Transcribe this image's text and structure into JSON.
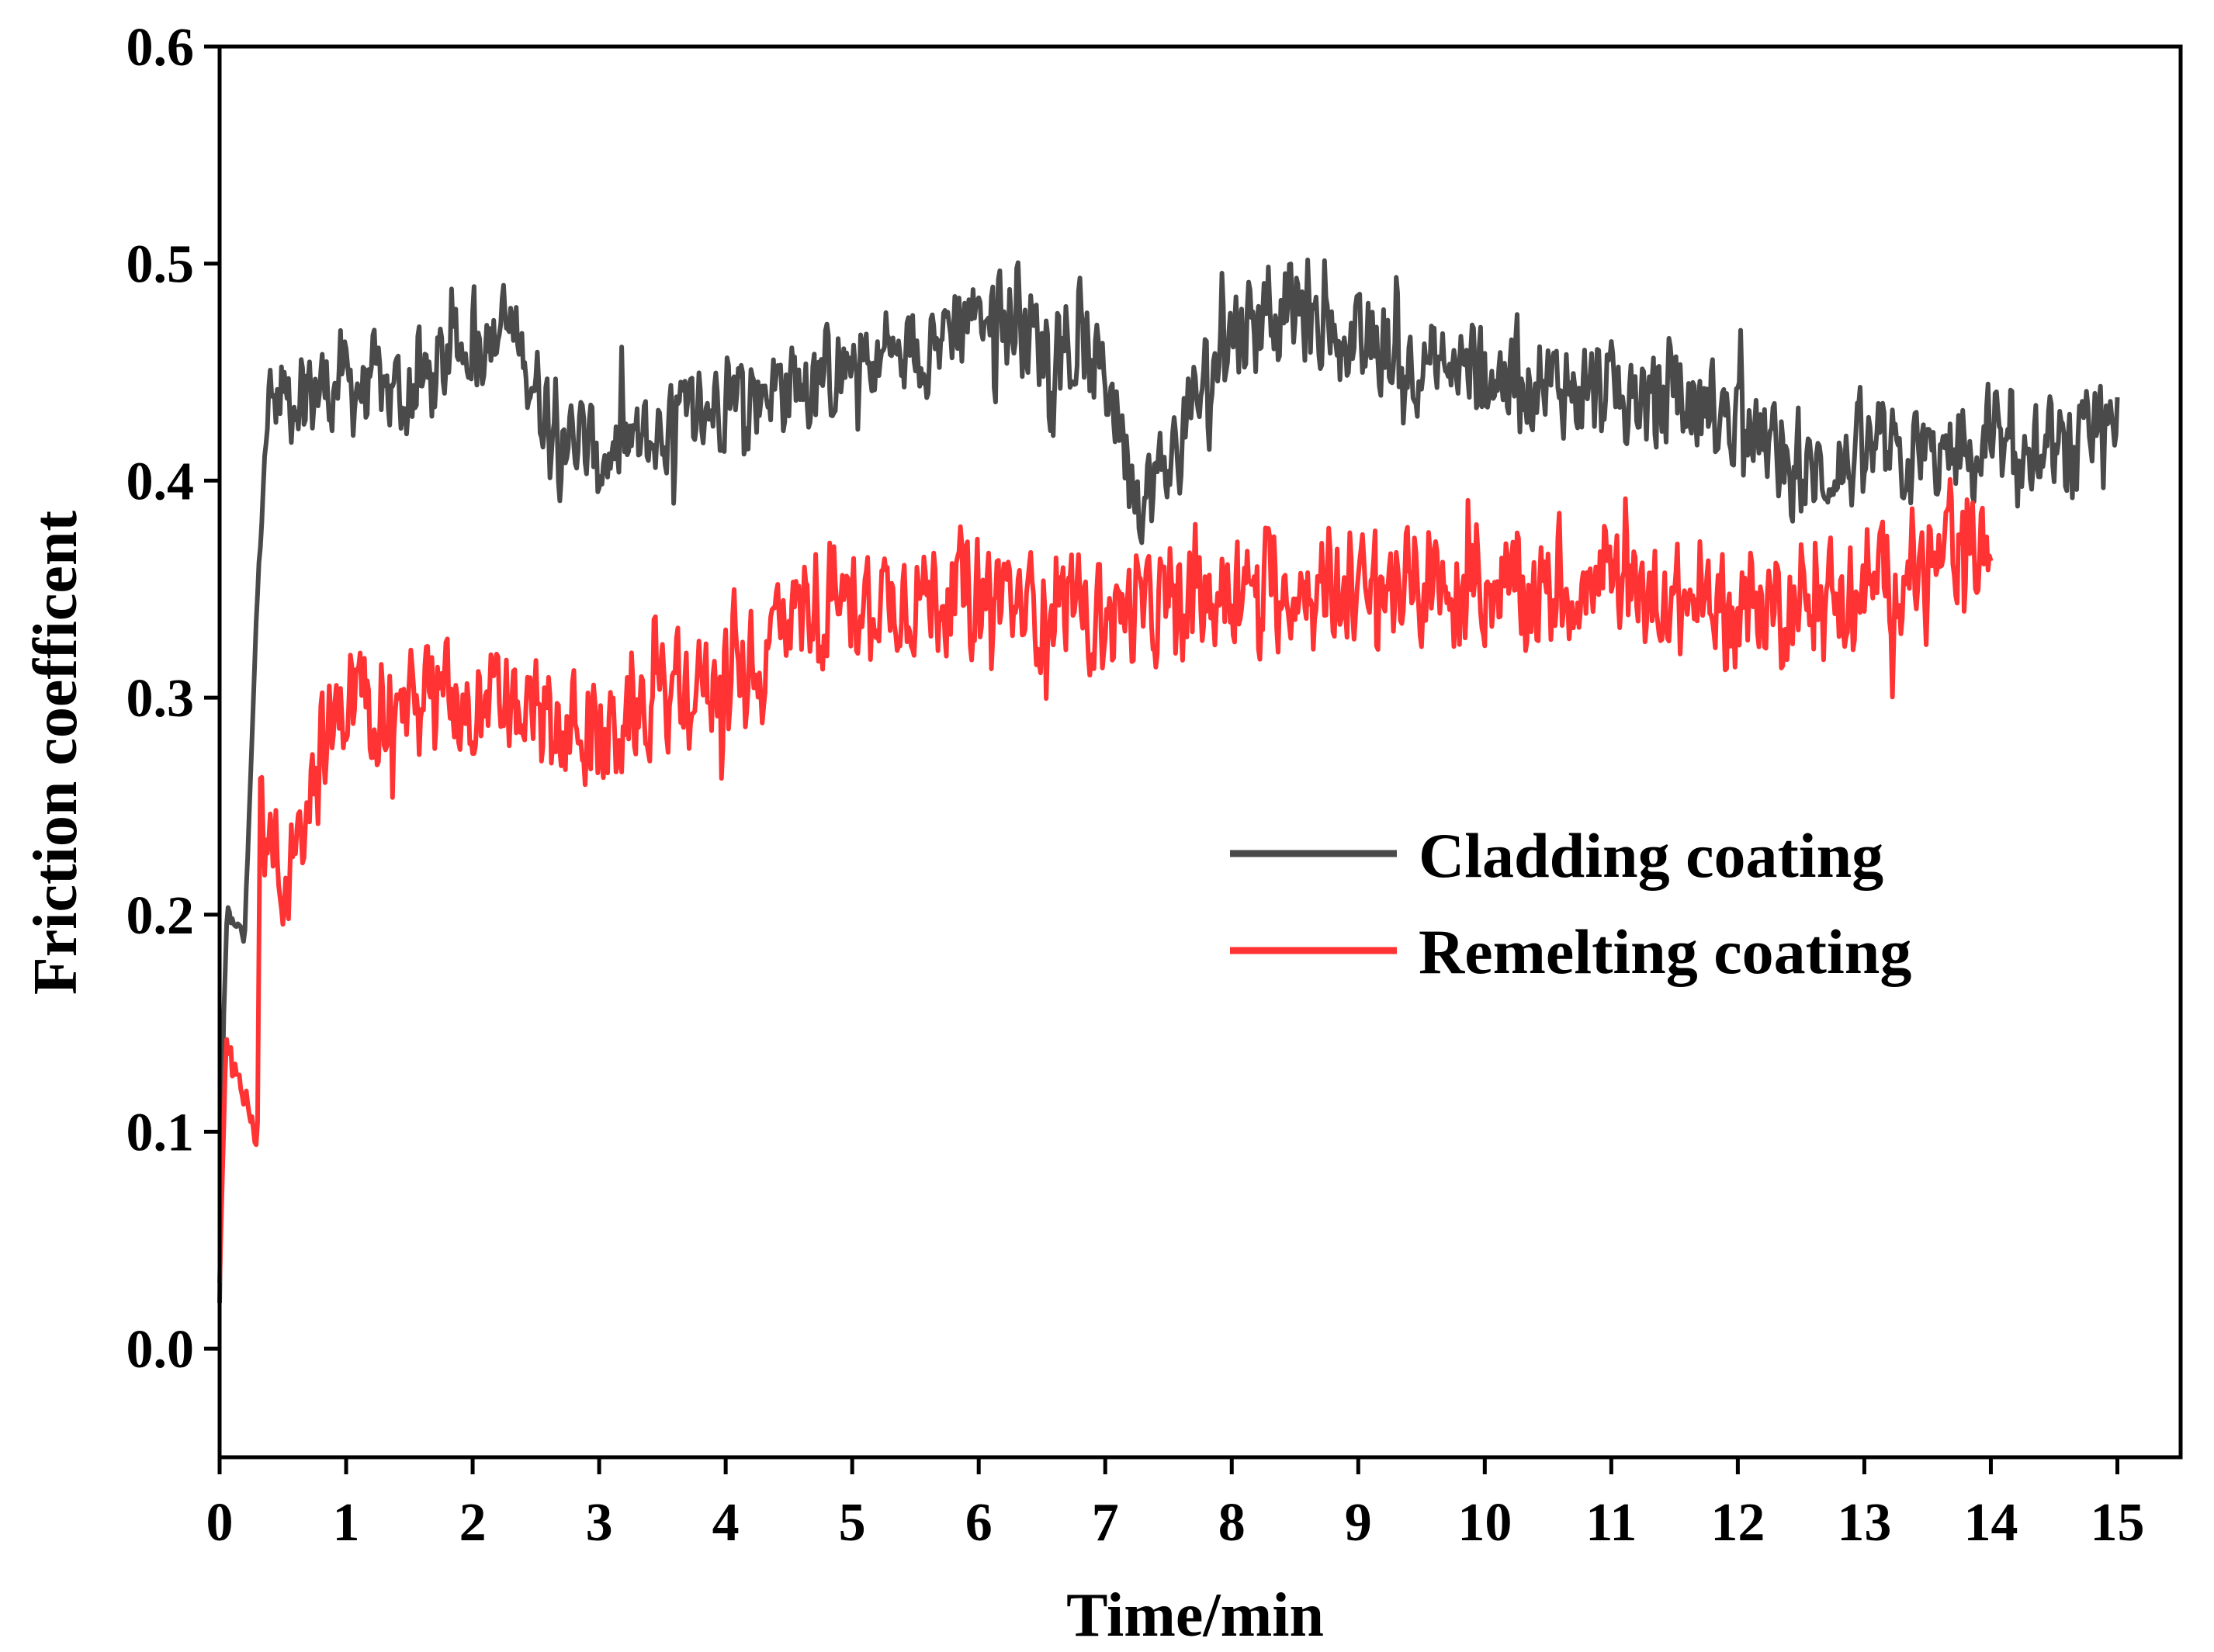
{
  "chart_data": {
    "type": "line",
    "title": "",
    "xlabel": "Time/min",
    "ylabel": "Friction coefficent",
    "xlim": [
      0,
      15.5
    ],
    "ylim": [
      -0.05,
      0.6
    ],
    "xticks": [
      0,
      1,
      2,
      3,
      4,
      5,
      6,
      7,
      8,
      9,
      10,
      11,
      12,
      13,
      14,
      15
    ],
    "yticks": [
      0.0,
      0.1,
      0.2,
      0.3,
      0.4,
      0.5,
      0.6
    ],
    "xtick_labels": [
      "0",
      "1",
      "2",
      "3",
      "4",
      "5",
      "6",
      "7",
      "8",
      "9",
      "10",
      "11",
      "12",
      "13",
      "14",
      "15"
    ],
    "ytick_labels": [
      "0.0",
      "0.1",
      "0.2",
      "0.3",
      "0.4",
      "0.5",
      "0.6"
    ],
    "grid": false,
    "legend_position": "center-right",
    "series": [
      {
        "name": "Cladding coating",
        "color": "#4a4a4a",
        "x_end": 15.0,
        "noise": 0.028,
        "envelope": [
          [
            0,
            0.02
          ],
          [
            0.03,
            0.15
          ],
          [
            0.06,
            0.2
          ],
          [
            0.2,
            0.19
          ],
          [
            0.3,
            0.35
          ],
          [
            0.35,
            0.43
          ],
          [
            0.5,
            0.44
          ],
          [
            1,
            0.445
          ],
          [
            1.5,
            0.44
          ],
          [
            2,
            0.465
          ],
          [
            2.3,
            0.47
          ],
          [
            2.6,
            0.43
          ],
          [
            3,
            0.41
          ],
          [
            3.5,
            0.42
          ],
          [
            4,
            0.44
          ],
          [
            4.5,
            0.445
          ],
          [
            5,
            0.45
          ],
          [
            5.5,
            0.46
          ],
          [
            6,
            0.48
          ],
          [
            6.5,
            0.465
          ],
          [
            7,
            0.45
          ],
          [
            7.3,
            0.39
          ],
          [
            7.6,
            0.42
          ],
          [
            8,
            0.47
          ],
          [
            8.5,
            0.48
          ],
          [
            9,
            0.46
          ],
          [
            10,
            0.45
          ],
          [
            11,
            0.44
          ],
          [
            12,
            0.43
          ],
          [
            12.5,
            0.4
          ],
          [
            13,
            0.41
          ],
          [
            14,
            0.41
          ],
          [
            14.5,
            0.41
          ],
          [
            15,
            0.42
          ]
        ]
      },
      {
        "name": "Remelting coating",
        "color": "#ff3333",
        "x_end": 14.0,
        "noise": 0.032,
        "envelope": [
          [
            0,
            0.03
          ],
          [
            0.05,
            0.14
          ],
          [
            0.15,
            0.13
          ],
          [
            0.3,
            0.09
          ],
          [
            0.32,
            0.25
          ],
          [
            0.5,
            0.21
          ],
          [
            0.7,
            0.26
          ],
          [
            1,
            0.3
          ],
          [
            1.5,
            0.3
          ],
          [
            2,
            0.3
          ],
          [
            2.5,
            0.29
          ],
          [
            3,
            0.28
          ],
          [
            3.5,
            0.3
          ],
          [
            4,
            0.31
          ],
          [
            4.3,
            0.31
          ],
          [
            4.4,
            0.34
          ],
          [
            5,
            0.345
          ],
          [
            6,
            0.35
          ],
          [
            6.5,
            0.34
          ],
          [
            7,
            0.34
          ],
          [
            7.5,
            0.34
          ],
          [
            8,
            0.35
          ],
          [
            9,
            0.35
          ],
          [
            10,
            0.35
          ],
          [
            11,
            0.35
          ],
          [
            12,
            0.34
          ],
          [
            13,
            0.35
          ],
          [
            14,
            0.37
          ]
        ]
      }
    ]
  }
}
